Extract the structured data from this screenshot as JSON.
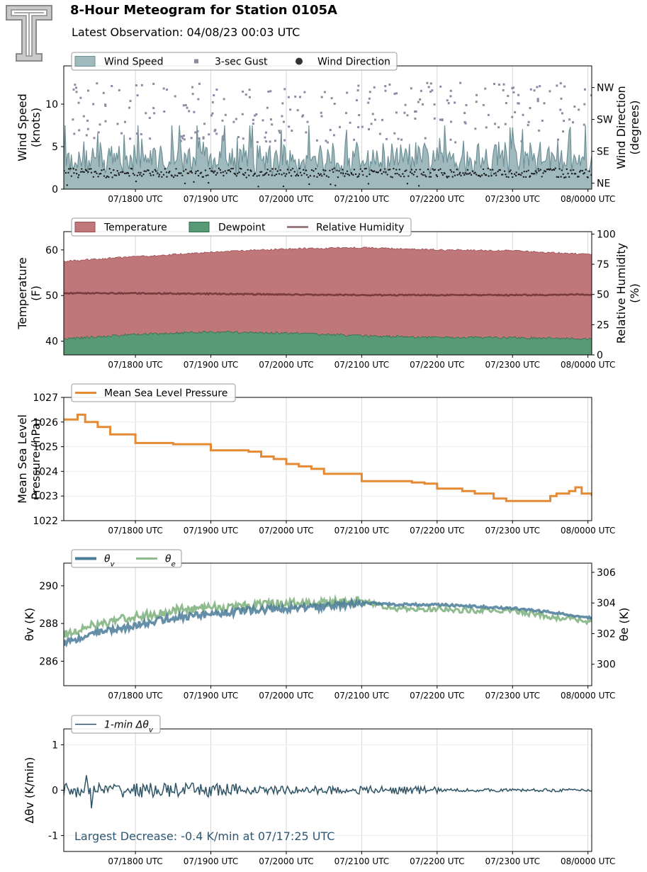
{
  "header": {
    "title": "8-Hour Meteogram for Station 0105A",
    "subtitle": "Latest Observation: 04/08/23 00:03 UTC",
    "logo_letter": "T",
    "logo_mark": "®"
  },
  "colors": {
    "wind_fill": "#9fb9bd",
    "wind_line": "#6e9197",
    "gust": "#8e8aa4",
    "direction": "#1a1a1a",
    "temperature": "#c0777a",
    "temperature_line": "#9c4b50",
    "dewpoint": "#589a75",
    "dewpoint_line": "#2f6f4a",
    "humidity": "#7a3b3e",
    "pressure": "#e58a34",
    "theta_v": "#4a7b99",
    "theta_e": "#8fbb8e",
    "dtheta": "#2f5466",
    "annotation": "#2e5872",
    "grid": "#d6d6d6"
  },
  "chart_data": [
    {
      "type": "area",
      "panel": "wind",
      "ylabel": [
        "Wind Speed",
        "(knots)"
      ],
      "ylabel2": [
        "Wind Direction",
        "(degrees)"
      ],
      "ylim": [
        0,
        14.5
      ],
      "yticks": [
        0,
        5,
        10
      ],
      "yticks2": [
        "NE",
        "SE",
        "SW",
        "NW"
      ],
      "legend": [
        "Wind Speed",
        "3-sec Gust",
        "Wind Direction"
      ],
      "xticks": [
        "07/1800 UTC",
        "07/1900 UTC",
        "07/2000 UTC",
        "07/2100 UTC",
        "07/2200 UTC",
        "07/2300 UTC",
        "08/0000 UTC"
      ],
      "series": [
        {
          "name": "Wind Speed",
          "style": "area",
          "mean": 3.6,
          "range": [
            1.5,
            7.5
          ]
        },
        {
          "name": "3-sec Gust",
          "style": "scatter",
          "mean": 8.5,
          "range": [
            5.5,
            12.5
          ]
        },
        {
          "name": "Wind Direction",
          "style": "scatter",
          "mean": "NE",
          "range": [
            0.3,
            3.0
          ]
        }
      ]
    },
    {
      "type": "area",
      "panel": "temperature",
      "ylabel": [
        "Temperature",
        "(F)"
      ],
      "ylabel2": [
        "Relative Humidity",
        "(%)"
      ],
      "ylim": [
        37,
        64
      ],
      "ylim2": [
        0,
        102
      ],
      "yticks": [
        40,
        50,
        60
      ],
      "yticks2": [
        0,
        25,
        50,
        75,
        100
      ],
      "legend": [
        "Temperature",
        "Dewpoint",
        "Relative Humidity"
      ],
      "xticks": [
        "07/1800 UTC",
        "07/1900 UTC",
        "07/2000 UTC",
        "07/2100 UTC",
        "07/2200 UTC",
        "07/2300 UTC",
        "08/0000 UTC"
      ],
      "series": [
        {
          "name": "Temperature",
          "x": [
            "07/17:03",
            "07/18:00",
            "07/19:00",
            "07/20:00",
            "07/21:00",
            "07/22:00",
            "07/23:00",
            "08/00:03"
          ],
          "values": [
            57.5,
            58.5,
            59.5,
            60.2,
            60.5,
            60.0,
            59.8,
            59.0
          ]
        },
        {
          "name": "Dewpoint",
          "x": [
            "07/17:03",
            "07/18:00",
            "07/19:00",
            "07/20:00",
            "07/21:00",
            "07/22:00",
            "07/23:00",
            "08/00:03"
          ],
          "values": [
            40.5,
            41.5,
            42.0,
            41.8,
            41.2,
            40.8,
            40.8,
            40.5
          ]
        },
        {
          "name": "Relative Humidity",
          "x": [
            "07/17:03",
            "07/18:00",
            "07/19:00",
            "07/20:00",
            "07/21:00",
            "07/22:00",
            "07/23:00",
            "08/00:03"
          ],
          "values": [
            51,
            51,
            50.5,
            50,
            49.5,
            49.5,
            49.5,
            50
          ]
        }
      ]
    },
    {
      "type": "line",
      "panel": "pressure",
      "ylabel": [
        "Mean Sea Level",
        "Pressure (hPa)"
      ],
      "ylim": [
        1022,
        1027
      ],
      "yticks": [
        1022,
        1023,
        1024,
        1025,
        1026,
        1027
      ],
      "legend": [
        "Mean Sea Level Pressure"
      ],
      "xticks": [
        "07/1800 UTC",
        "07/1900 UTC",
        "07/2000 UTC",
        "07/2100 UTC",
        "07/2200 UTC",
        "07/2300 UTC",
        "08/0000 UTC"
      ],
      "series": [
        {
          "name": "Mean Sea Level Pressure",
          "x": [
            "07/17:03",
            "07/17:10",
            "07/17:14",
            "07/17:20",
            "07/17:30",
            "07/17:40",
            "07/18:00",
            "07/18:30",
            "07/18:50",
            "07/19:00",
            "07/19:30",
            "07/19:40",
            "07/19:50",
            "07/20:00",
            "07/20:10",
            "07/20:20",
            "07/20:30",
            "07/20:40",
            "07/20:50",
            "07/21:00",
            "07/21:30",
            "07/21:40",
            "07/21:50",
            "07/22:00",
            "07/22:10",
            "07/22:20",
            "07/22:30",
            "07/22:35",
            "07/22:45",
            "07/22:55",
            "07/23:05",
            "07/23:30",
            "07/23:35",
            "07/23:45",
            "07/23:50",
            "07/23:55",
            "08/00:03"
          ],
          "values": [
            1026.1,
            1026.1,
            1026.3,
            1026.0,
            1025.8,
            1025.5,
            1025.15,
            1025.1,
            1025.1,
            1024.85,
            1024.8,
            1024.6,
            1024.5,
            1024.3,
            1024.2,
            1024.1,
            1023.9,
            1023.9,
            1023.9,
            1023.6,
            1023.6,
            1023.55,
            1023.5,
            1023.3,
            1023.3,
            1023.2,
            1023.1,
            1023.1,
            1022.9,
            1022.8,
            1022.8,
            1023.0,
            1023.1,
            1023.2,
            1023.35,
            1023.1,
            1023.0
          ]
        }
      ]
    },
    {
      "type": "line",
      "panel": "theta",
      "ylabel": [
        "θv (K)"
      ],
      "ylabel2": [
        "θe (K)"
      ],
      "ylim": [
        284.7,
        291.2
      ],
      "ylim2": [
        298.6,
        306.6
      ],
      "yticks": [
        286,
        288,
        290
      ],
      "yticks2": [
        300,
        302,
        304,
        306
      ],
      "legend": [
        "θv",
        "θe"
      ],
      "xticks": [
        "07/1800 UTC",
        "07/1900 UTC",
        "07/2000 UTC",
        "07/2100 UTC",
        "07/2200 UTC",
        "07/2300 UTC",
        "08/0000 UTC"
      ],
      "series": [
        {
          "name": "θv",
          "x": [
            "07/17:03",
            "07/17:30",
            "07/18:00",
            "07/18:30",
            "07/19:00",
            "07/19:30",
            "07/20:00",
            "07/20:30",
            "07/21:00",
            "07/21:30",
            "07/22:00",
            "07/22:30",
            "07/23:00",
            "07/23:30",
            "08/00:03"
          ],
          "values": [
            287.0,
            287.5,
            287.9,
            288.3,
            288.5,
            288.7,
            288.8,
            288.9,
            289.1,
            289.0,
            289.0,
            288.9,
            288.8,
            288.6,
            288.3
          ]
        },
        {
          "name": "θe",
          "x": [
            "07/17:03",
            "07/17:30",
            "07/18:00",
            "07/18:30",
            "07/19:00",
            "07/19:30",
            "07/20:00",
            "07/20:30",
            "07/21:00",
            "07/21:30",
            "07/22:00",
            "07/22:30",
            "07/23:00",
            "07/23:30",
            "08/00:03"
          ],
          "values": [
            302.0,
            302.6,
            303.1,
            303.5,
            303.7,
            303.8,
            304.0,
            304.0,
            304.1,
            303.6,
            303.6,
            303.5,
            303.5,
            303.1,
            302.8
          ]
        }
      ]
    },
    {
      "type": "line",
      "panel": "dtheta",
      "ylabel": [
        "Δθv (K/min)"
      ],
      "ylim": [
        -1.35,
        1.35
      ],
      "yticks": [
        -1,
        0,
        1
      ],
      "legend": [
        "1-min Δθv"
      ],
      "xticks": [
        "07/1800 UTC",
        "07/1900 UTC",
        "07/2000 UTC",
        "07/2100 UTC",
        "07/2200 UTC",
        "07/2300 UTC",
        "08/0000 UTC"
      ],
      "annotation": "Largest Decrease: -0.4 K/min at 07/17:25 UTC",
      "series": [
        {
          "name": "1-min Δθv",
          "mean": 0.0,
          "range": [
            -0.4,
            0.35
          ]
        }
      ]
    }
  ]
}
